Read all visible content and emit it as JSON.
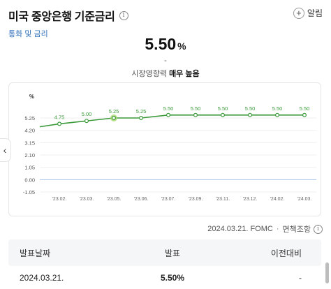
{
  "header": {
    "title": "미국 중앙은행 기준금리",
    "info_icon": "i",
    "category": "통화 및 금리",
    "alarm_label": "알림",
    "plus_icon": "+"
  },
  "summary": {
    "value": "5.50",
    "unit": "%",
    "change": "-",
    "impact_label": "시장영향력",
    "impact_value": "매우 높음"
  },
  "chart_data": {
    "type": "line",
    "categories": [
      "'23.02.",
      "'23.03.",
      "'23.05.",
      "'23.06.",
      "'23.07.",
      "'23.09.",
      "'23.11.",
      "'23.12.",
      "'24.02.",
      "'24.03."
    ],
    "series": [
      {
        "values": [
          4.75,
          5.0,
          5.25,
          5.25,
          5.5,
          5.5,
          5.5,
          5.5,
          5.5,
          5.5
        ]
      }
    ],
    "point_labels": [
      "4.75",
      "5.00",
      "5.25",
      "5.25",
      "5.50",
      "5.50",
      "5.50",
      "5.50",
      "5.50",
      "5.50"
    ],
    "start_value": 4.5,
    "highlight_index": 2,
    "y_unit": "%",
    "yticks": [
      "5.25",
      "4.20",
      "3.15",
      "2.10",
      "1.05",
      "0.00",
      "-1.05"
    ],
    "ylim": [
      -1.05,
      5.25
    ],
    "colors": {
      "line": "#3a9a3a",
      "label": "#3a9a3a",
      "highlight": "#a8d86a",
      "zero": "#a9c4e8",
      "grid": "#efefef"
    }
  },
  "footnote": {
    "date": "2024.03.21. FOMC",
    "separator": "·",
    "disclaimer": "면책조항"
  },
  "table": {
    "headers": [
      "발표날짜",
      "발표",
      "이전대비"
    ],
    "rows": [
      {
        "date": "2024.03.21.",
        "value": "5.50%",
        "change": "-"
      }
    ]
  },
  "nav": {
    "prev_icon": "‹"
  }
}
